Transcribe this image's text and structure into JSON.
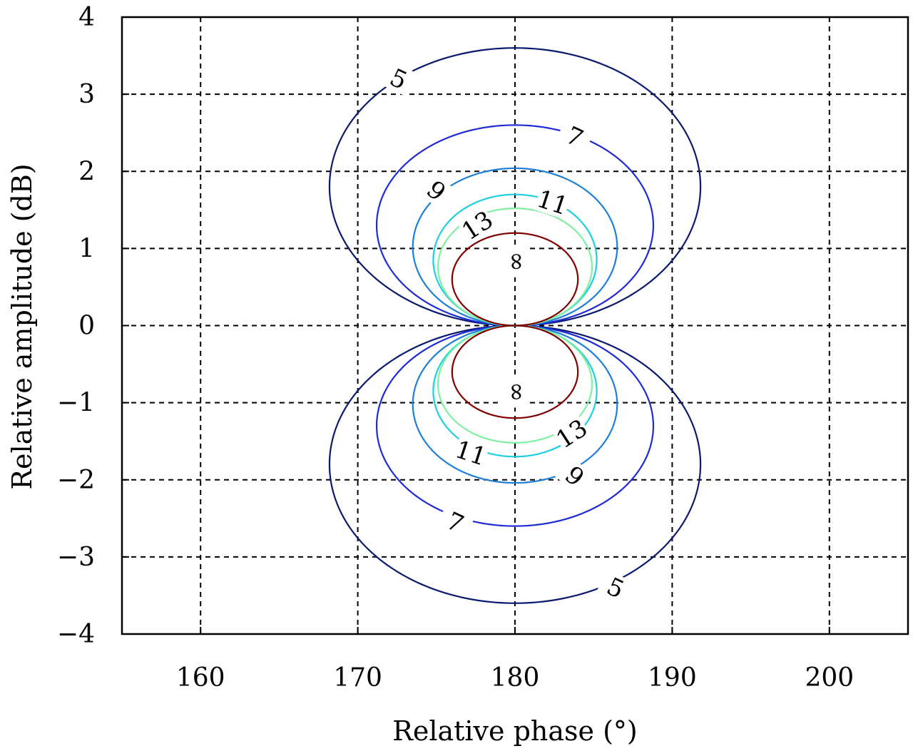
{
  "chart_data": {
    "type": "contour",
    "xlabel": "Relative phase (°)",
    "ylabel": "Relative amplitude (dB)",
    "xlim": [
      155,
      205
    ],
    "ylim": [
      -4,
      4
    ],
    "xticks": [
      160,
      170,
      180,
      190,
      200
    ],
    "yticks": [
      4,
      3,
      2,
      1,
      0,
      -1,
      -2,
      -3,
      -4
    ],
    "ytick_labels": [
      "4",
      "3",
      "2",
      "1",
      "0",
      "−1",
      "−2",
      "−3",
      "−4"
    ],
    "grid": true,
    "contours": [
      {
        "level": "5",
        "color": "#0b1a6e",
        "shape": {
          "center_x": 180,
          "center_y": 1.8,
          "half_width_deg": 11.8,
          "half_height_db": 1.8
        },
        "labels": [
          {
            "text": "5",
            "x": 172.6,
            "y": 3.2,
            "angle": 25
          },
          {
            "text": "5",
            "x": 186.4,
            "y": -3.4,
            "angle": 25
          }
        ]
      },
      {
        "level": "7",
        "color": "#1f2bd6",
        "shape": {
          "center_x": 180,
          "center_y": 1.3,
          "half_width_deg": 8.8,
          "half_height_db": 1.3
        },
        "labels": [
          {
            "text": "7",
            "x": 183.8,
            "y": 2.45,
            "angle": 25
          },
          {
            "text": "7",
            "x": 176.2,
            "y": -2.55,
            "angle": 25
          }
        ]
      },
      {
        "level": "9",
        "color": "#1e7fd6",
        "shape": {
          "center_x": 180,
          "center_y": 1.02,
          "half_width_deg": 6.5,
          "half_height_db": 1.02
        },
        "labels": [
          {
            "text": "9",
            "x": 175.0,
            "y": 1.75,
            "angle": 40
          },
          {
            "text": "9",
            "x": 183.8,
            "y": -1.95,
            "angle": 40
          }
        ]
      },
      {
        "level": "11",
        "color": "#1dcfe0",
        "shape": {
          "center_x": 180,
          "center_y": 0.85,
          "half_width_deg": 5.2,
          "half_height_db": 0.85
        },
        "labels": [
          {
            "text": "11",
            "x": 182.4,
            "y": 1.6,
            "angle": 18
          },
          {
            "text": "11",
            "x": 177.2,
            "y": -1.65,
            "angle": 18
          }
        ]
      },
      {
        "level": "13",
        "color": "#7ef0a0",
        "shape": {
          "center_x": 180,
          "center_y": 0.76,
          "half_width_deg": 4.9,
          "half_height_db": 0.76
        },
        "labels": [
          {
            "text": "13",
            "x": 177.6,
            "y": 1.3,
            "angle": -33
          },
          {
            "text": "13",
            "x": 183.6,
            "y": -1.4,
            "angle": -33
          }
        ]
      },
      {
        "level": "∞",
        "color": "#800000",
        "shape": {
          "center_x": 180,
          "center_y": 0.6,
          "half_width_deg": 4.0,
          "half_height_db": 0.6
        },
        "labels": [
          {
            "text": "∞",
            "x": 180,
            "y": 0.83,
            "angle": -90
          },
          {
            "text": "∞",
            "x": 180,
            "y": -0.86,
            "angle": -90
          }
        ]
      }
    ]
  }
}
